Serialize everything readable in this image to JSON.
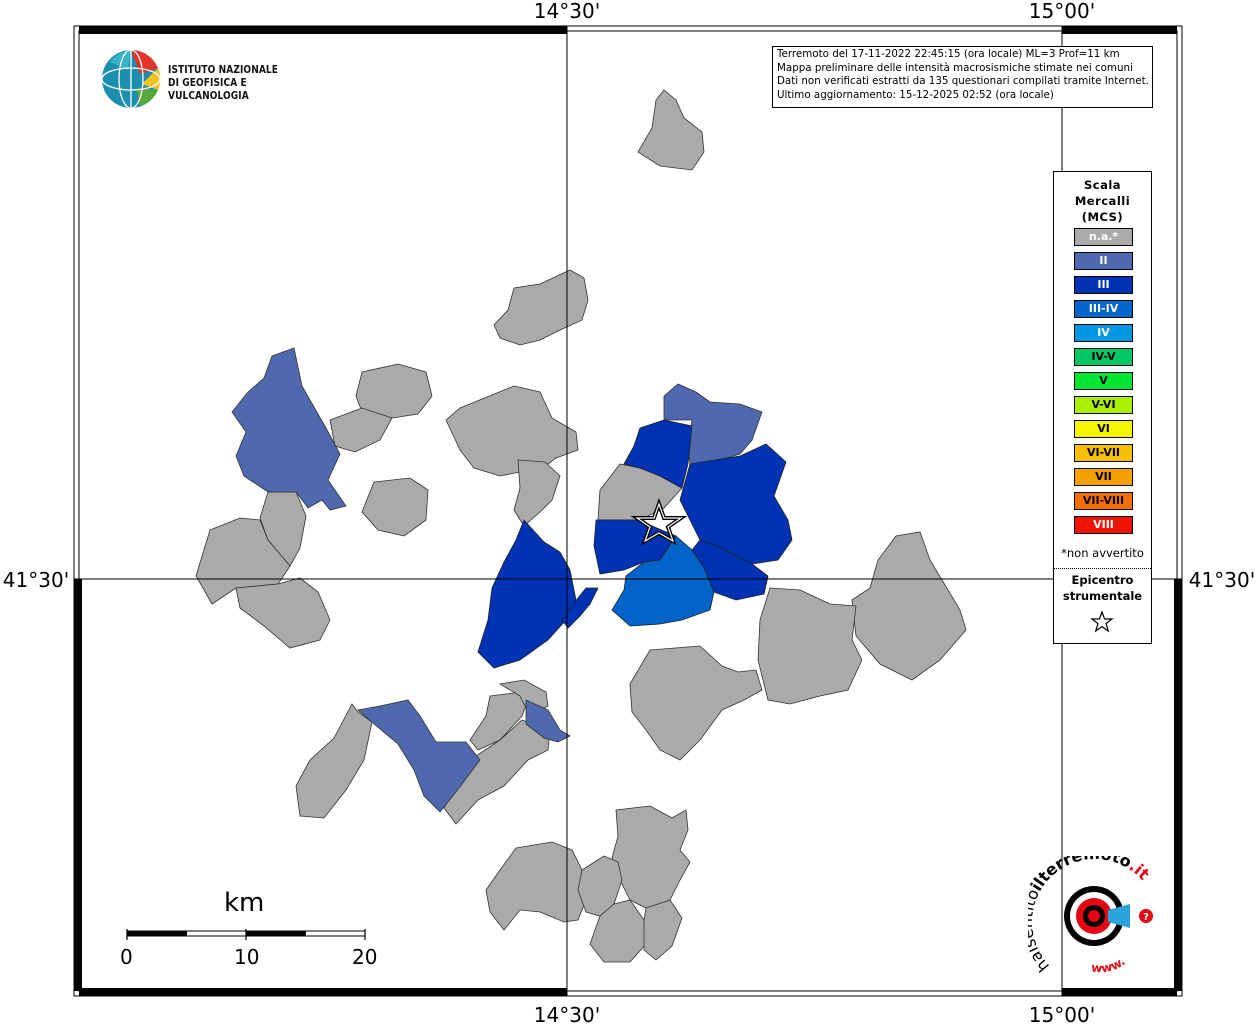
{
  "coordinates": {
    "top_labels": [
      "14°30'",
      "15°00'"
    ],
    "bottom_labels": [
      "14°30'",
      "15°00'"
    ],
    "left_label": "41°30'",
    "right_label": "41°30'"
  },
  "info": {
    "line1": "Terremoto del 17-11-2022 22:45:15 (ora locale) ML=3 Prof=11 km",
    "line2": "Mappa preliminare delle intensità macrosismiche stimate nei comuni",
    "line3": "Dati non verificati estratti da 135 questionari compilati tramite Internet.",
    "line4": "Ultimo aggiornamento: 15-12-2025 02:52 (ora locale)"
  },
  "logo": {
    "line1": "ISTITUTO NAZIONALE",
    "line2": "DI GEOFISICA E VULCANOLOGIA"
  },
  "legend": {
    "title_line1": "Scala",
    "title_line2": "Mercalli",
    "title_line3": "(MCS)",
    "items": [
      {
        "label": "n.a.*",
        "color": "#aaaaaa",
        "text_color": "#ffffff"
      },
      {
        "label": "II",
        "color": "#4f68ae",
        "text_color": "#ffffff"
      },
      {
        "label": "III",
        "color": "#0032b4",
        "text_color": "#ffffff"
      },
      {
        "label": "III-IV",
        "color": "#0064c8",
        "text_color": "#ffffff"
      },
      {
        "label": "IV",
        "color": "#0096e6",
        "text_color": "#ffffff"
      },
      {
        "label": "IV-V",
        "color": "#00c864",
        "text_color": "#000000"
      },
      {
        "label": "V",
        "color": "#00e632",
        "text_color": "#000000"
      },
      {
        "label": "V-VI",
        "color": "#aaf000",
        "text_color": "#000000"
      },
      {
        "label": "VI",
        "color": "#f5f500",
        "text_color": "#000000"
      },
      {
        "label": "VI-VII",
        "color": "#f5be00",
        "text_color": "#000000"
      },
      {
        "label": "VII",
        "color": "#f5a000",
        "text_color": "#000000"
      },
      {
        "label": "VII-VIII",
        "color": "#f56e00",
        "text_color": "#000000"
      },
      {
        "label": "VIII",
        "color": "#f01400",
        "text_color": "#ffffff"
      }
    ],
    "note": "*non avvertito",
    "epicenter_line1": "Epicentro",
    "epicenter_line2": "strumentale"
  },
  "scalebar": {
    "unit": "km",
    "ticks": [
      "0",
      "10",
      "20"
    ]
  },
  "site_logo": {
    "text_a": "haisentito",
    "text_b": "ilterremoto",
    "text_c": ".it",
    "text_d": "www."
  }
}
